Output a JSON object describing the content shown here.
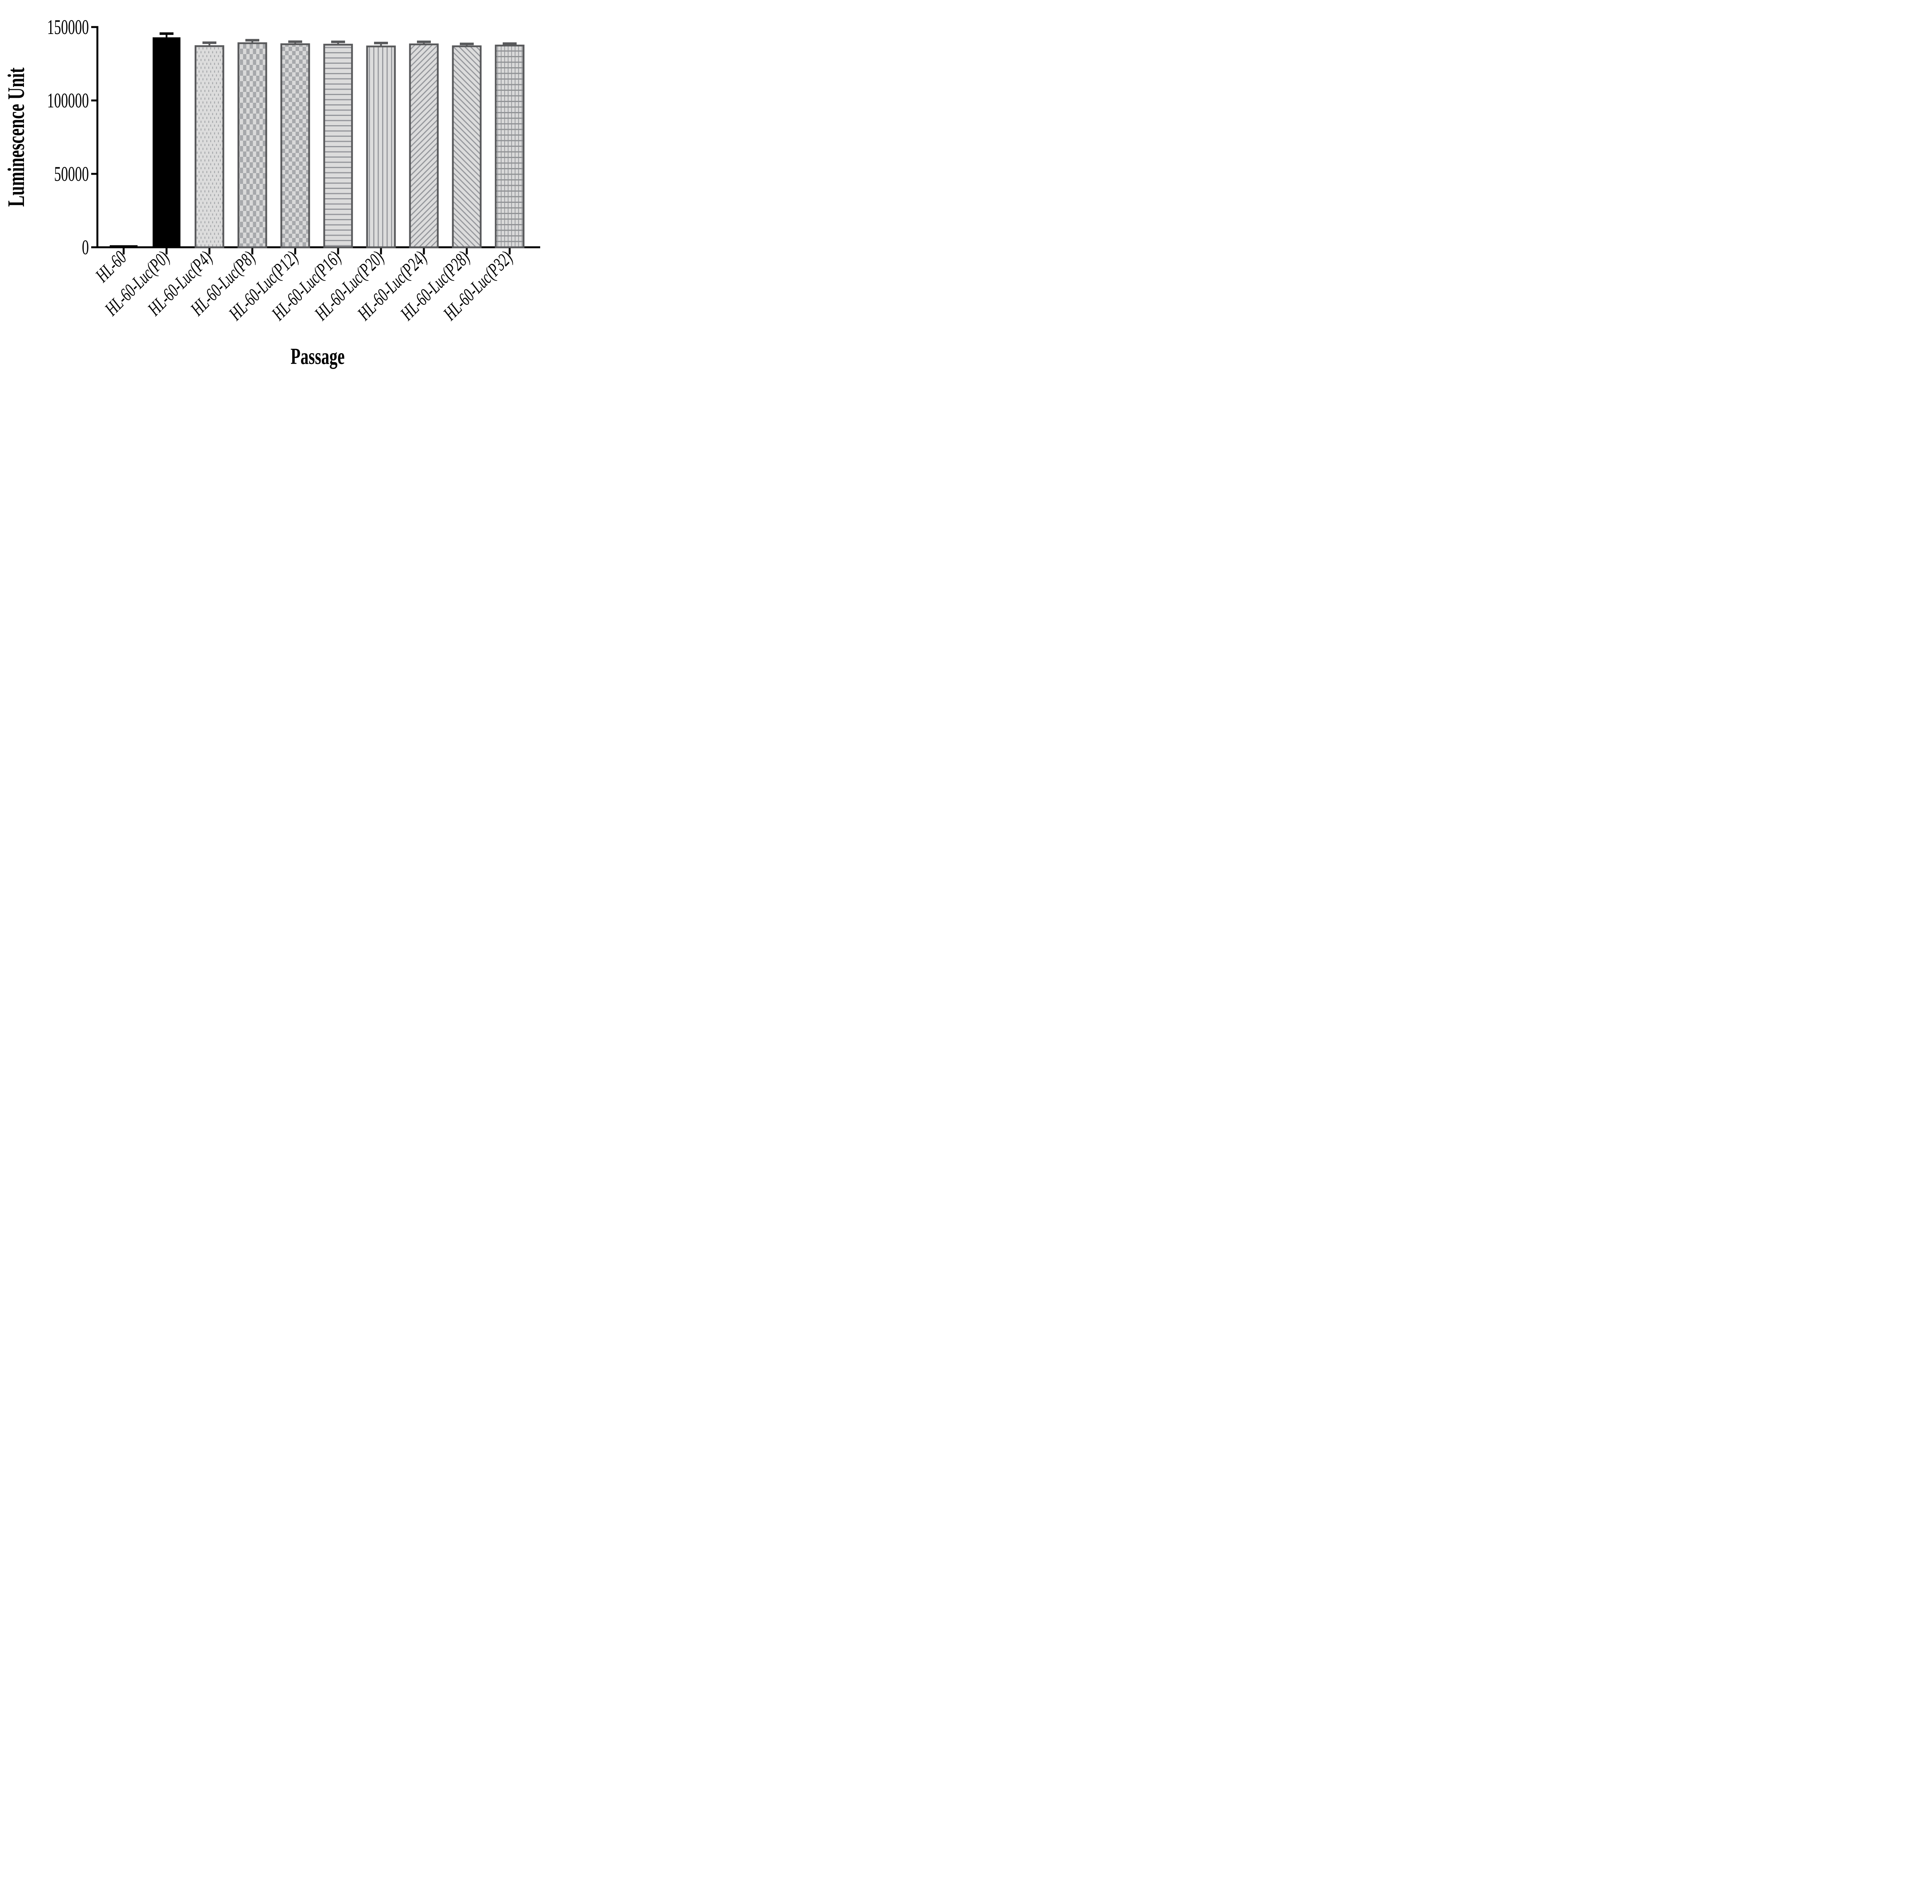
{
  "figure": {
    "background": "#ffffff"
  },
  "chart_data": {
    "type": "bar",
    "title": "",
    "xlabel": "Passage",
    "ylabel": "Luminescence Unit",
    "categories": [
      "HL-60",
      "HL-60-Luc(P0)",
      "HL-60-Luc(P4)",
      "HL-60-Luc(P8)",
      "HL-60-Luc(P12)",
      "HL-60-Luc(P16)",
      "HL-60-Luc(P20)",
      "HL-60-Luc(P24)",
      "HL-60-Luc(P28)",
      "HL-60-Luc(P32)"
    ],
    "values": [
      1400,
      143000,
      137000,
      139000,
      138300,
      138000,
      136800,
      138200,
      136900,
      137400
    ],
    "errors": [
      null,
      2000,
      1800,
      1500,
      1200,
      1400,
      1800,
      1200,
      1100,
      800
    ],
    "error_style": "upper-cap-only",
    "patterns": [
      "solid",
      "solid",
      "dotted",
      "checkerboard-fine",
      "checkerboard",
      "horizontal-lines",
      "vertical-lines",
      "diagonal-up",
      "diagonal-down",
      "grid"
    ],
    "y_ticks": [
      0,
      50000,
      100000,
      150000
    ],
    "y_tick_labels": [
      "0",
      "50000",
      "100000",
      "150000"
    ],
    "ylim": [
      0,
      150000
    ],
    "grid": false,
    "legend": false,
    "colors": {
      "solid_bar": "#000000",
      "bar_border": "#58595b",
      "pattern_background": "#dcdcdc",
      "pattern_foreground": "#a0a2a6",
      "axis": "#000000",
      "text": "#000000"
    }
  }
}
